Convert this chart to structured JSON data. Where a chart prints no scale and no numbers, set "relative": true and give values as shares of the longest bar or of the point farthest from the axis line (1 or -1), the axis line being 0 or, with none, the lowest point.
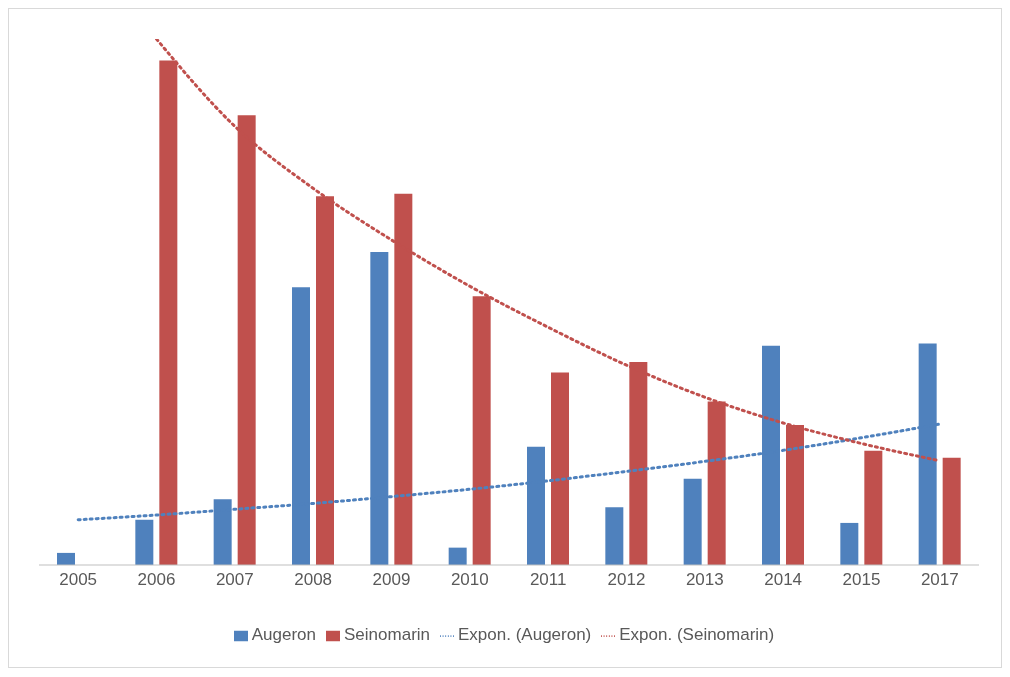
{
  "chart_data": {
    "type": "bar",
    "relative": true,
    "categories": [
      "2005",
      "2006",
      "2007",
      "2008",
      "2009",
      "2010",
      "2011",
      "2012",
      "2013",
      "2014",
      "2015",
      "2017"
    ],
    "series": [
      {
        "name": "Augeron",
        "color": "#4f81bd",
        "values": [
          0.023,
          0.086,
          0.125,
          0.528,
          0.595,
          0.033,
          0.225,
          0.11,
          0.164,
          0.417,
          0.08,
          0.421
        ]
      },
      {
        "name": "Seinomarin",
        "color": "#c0504d",
        "values": [
          null,
          0.959,
          0.855,
          0.701,
          0.706,
          0.511,
          0.366,
          0.386,
          0.311,
          0.266,
          0.217,
          0.204
        ]
      },
      {
        "name": "Expon. (Augeron)",
        "type": "line",
        "line_style": "dotted",
        "color": "#4f81bd",
        "values": [
          0.086,
          0.095,
          0.106,
          0.117,
          0.13,
          0.144,
          0.16,
          0.178,
          0.197,
          0.218,
          0.242,
          0.268
        ]
      },
      {
        "name": "Expon. (Seinomarin)",
        "type": "line",
        "line_style": "dotted",
        "color": "#c0504d",
        "values": [
          null,
          1,
          0.834,
          0.716,
          0.618,
          0.53,
          0.452,
          0.38,
          0.319,
          0.27,
          0.231,
          0.198
        ]
      }
    ],
    "legend": "bottom",
    "marker": "none"
  }
}
